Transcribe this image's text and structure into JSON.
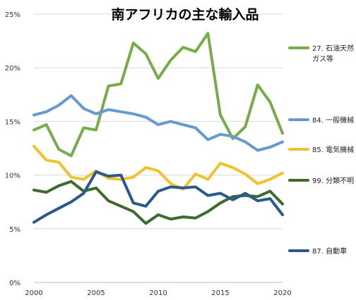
{
  "chart_data": {
    "type": "line",
    "title": "南アフリカの主な輸入品",
    "xlabel": "",
    "ylabel": "",
    "xlim": [
      2000,
      2020
    ],
    "ylim": [
      0,
      25
    ],
    "x_ticks": [
      "2000",
      "2005",
      "2010",
      "2015",
      "2020"
    ],
    "y_ticks": [
      "0%",
      "5%",
      "10%",
      "15%",
      "20%",
      "25%"
    ],
    "grid": "horizontal",
    "legend_position": "right",
    "x": [
      2000,
      2001,
      2002,
      2003,
      2004,
      2005,
      2006,
      2007,
      2008,
      2009,
      2010,
      2011,
      2012,
      2013,
      2014,
      2015,
      2016,
      2017,
      2018,
      2019,
      2020
    ],
    "series": [
      {
        "name_lines": [
          "27. 石油天然",
          "ガス等"
        ],
        "color": "#77ac48",
        "values": [
          14.2,
          14.7,
          12.4,
          11.8,
          14.4,
          14.2,
          18.3,
          18.5,
          22.3,
          21.3,
          19.0,
          20.7,
          21.9,
          21.5,
          23.2,
          15.6,
          13.4,
          14.5,
          18.4,
          16.8,
          13.9
        ]
      },
      {
        "name_lines": [
          "84. 一般機械"
        ],
        "color": "#6699cc",
        "values": [
          15.6,
          15.9,
          16.5,
          17.4,
          16.2,
          15.7,
          16.1,
          15.9,
          15.7,
          15.4,
          14.7,
          15.0,
          14.7,
          14.4,
          13.3,
          13.8,
          13.6,
          13.1,
          12.3,
          12.6,
          13.1
        ]
      },
      {
        "name_lines": [
          "85. 電気機械"
        ],
        "color": "#f2c12e",
        "values": [
          12.7,
          11.4,
          11.2,
          9.8,
          9.6,
          10.4,
          9.7,
          9.6,
          9.8,
          10.7,
          10.4,
          9.2,
          8.7,
          10.1,
          9.6,
          11.1,
          10.7,
          10.1,
          9.2,
          9.6,
          10.2
        ]
      },
      {
        "name_lines": [
          "99. 分類不明"
        ],
        "color": "#3c6b2e",
        "values": [
          8.6,
          8.4,
          9.0,
          9.4,
          8.5,
          8.8,
          7.6,
          7.1,
          6.6,
          5.5,
          6.3,
          5.9,
          6.1,
          6.0,
          6.6,
          7.4,
          8.0,
          8.1,
          8.0,
          8.5,
          7.3
        ]
      },
      {
        "name_lines": [
          "87. 自動車"
        ],
        "color": "#2a5a8c",
        "values": [
          5.6,
          6.3,
          6.9,
          7.5,
          8.3,
          10.3,
          9.9,
          10.0,
          7.4,
          7.1,
          8.5,
          8.9,
          8.8,
          8.9,
          8.1,
          8.3,
          7.7,
          8.3,
          7.6,
          7.8,
          6.3
        ]
      }
    ]
  }
}
